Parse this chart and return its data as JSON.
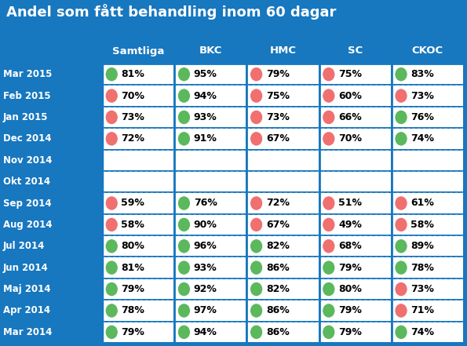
{
  "title": "Andel som fått behandling inom 60 dagar",
  "columns": [
    "Samtliga",
    "BKC",
    "HMC",
    "SC",
    "CKOC"
  ],
  "rows": [
    "Mar 2015",
    "Feb 2015",
    "Jan 2015",
    "Dec 2014",
    "Nov 2014",
    "Okt 2014",
    "Sep 2014",
    "Aug 2014",
    "Jul 2014",
    "Jun 2014",
    "Maj 2014",
    "Apr 2014",
    "Mar 2014"
  ],
  "data": {
    "Mar 2015": {
      "Samtliga": [
        81,
        "green"
      ],
      "BKC": [
        95,
        "green"
      ],
      "HMC": [
        79,
        "red"
      ],
      "SC": [
        75,
        "red"
      ],
      "CKOC": [
        83,
        "green"
      ]
    },
    "Feb 2015": {
      "Samtliga": [
        70,
        "red"
      ],
      "BKC": [
        94,
        "green"
      ],
      "HMC": [
        75,
        "red"
      ],
      "SC": [
        60,
        "red"
      ],
      "CKOC": [
        73,
        "red"
      ]
    },
    "Jan 2015": {
      "Samtliga": [
        73,
        "red"
      ],
      "BKC": [
        93,
        "green"
      ],
      "HMC": [
        73,
        "red"
      ],
      "SC": [
        66,
        "red"
      ],
      "CKOC": [
        76,
        "green"
      ]
    },
    "Dec 2014": {
      "Samtliga": [
        72,
        "red"
      ],
      "BKC": [
        91,
        "green"
      ],
      "HMC": [
        67,
        "red"
      ],
      "SC": [
        70,
        "red"
      ],
      "CKOC": [
        74,
        "green"
      ]
    },
    "Nov 2014": {
      "Samtliga": [
        null,
        null
      ],
      "BKC": [
        null,
        null
      ],
      "HMC": [
        null,
        null
      ],
      "SC": [
        null,
        null
      ],
      "CKOC": [
        null,
        null
      ]
    },
    "Okt 2014": {
      "Samtliga": [
        null,
        null
      ],
      "BKC": [
        null,
        null
      ],
      "HMC": [
        null,
        null
      ],
      "SC": [
        null,
        null
      ],
      "CKOC": [
        null,
        null
      ]
    },
    "Sep 2014": {
      "Samtliga": [
        59,
        "red"
      ],
      "BKC": [
        76,
        "green"
      ],
      "HMC": [
        72,
        "red"
      ],
      "SC": [
        51,
        "red"
      ],
      "CKOC": [
        61,
        "red"
      ]
    },
    "Aug 2014": {
      "Samtliga": [
        58,
        "red"
      ],
      "BKC": [
        90,
        "green"
      ],
      "HMC": [
        67,
        "red"
      ],
      "SC": [
        49,
        "red"
      ],
      "CKOC": [
        58,
        "red"
      ]
    },
    "Jul 2014": {
      "Samtliga": [
        80,
        "green"
      ],
      "BKC": [
        96,
        "green"
      ],
      "HMC": [
        82,
        "green"
      ],
      "SC": [
        68,
        "red"
      ],
      "CKOC": [
        89,
        "green"
      ]
    },
    "Jun 2014": {
      "Samtliga": [
        81,
        "green"
      ],
      "BKC": [
        93,
        "green"
      ],
      "HMC": [
        86,
        "green"
      ],
      "SC": [
        79,
        "green"
      ],
      "CKOC": [
        78,
        "green"
      ]
    },
    "Maj 2014": {
      "Samtliga": [
        79,
        "green"
      ],
      "BKC": [
        92,
        "green"
      ],
      "HMC": [
        82,
        "green"
      ],
      "SC": [
        80,
        "green"
      ],
      "CKOC": [
        73,
        "red"
      ]
    },
    "Apr 2014": {
      "Samtliga": [
        78,
        "green"
      ],
      "BKC": [
        97,
        "green"
      ],
      "HMC": [
        86,
        "green"
      ],
      "SC": [
        79,
        "green"
      ],
      "CKOC": [
        71,
        "red"
      ]
    },
    "Mar 2014": {
      "Samtliga": [
        79,
        "green"
      ],
      "BKC": [
        94,
        "green"
      ],
      "HMC": [
        86,
        "green"
      ],
      "SC": [
        79,
        "green"
      ],
      "CKOC": [
        74,
        "green"
      ]
    }
  },
  "bg_color": "#1777bf",
  "title_color": "white",
  "header_color": "white",
  "row_label_color": "white",
  "cell_bg_color": "white",
  "green_color": "#5cb85c",
  "red_color": "#f07070",
  "empty_rows": [
    "Nov 2014",
    "Okt 2014"
  ],
  "col_sep_color": "#1777bf",
  "dot_line_color": "#5599cc",
  "title_fontsize": 13,
  "header_fontsize": 9.5,
  "row_label_fontsize": 8.5,
  "value_fontsize": 9
}
